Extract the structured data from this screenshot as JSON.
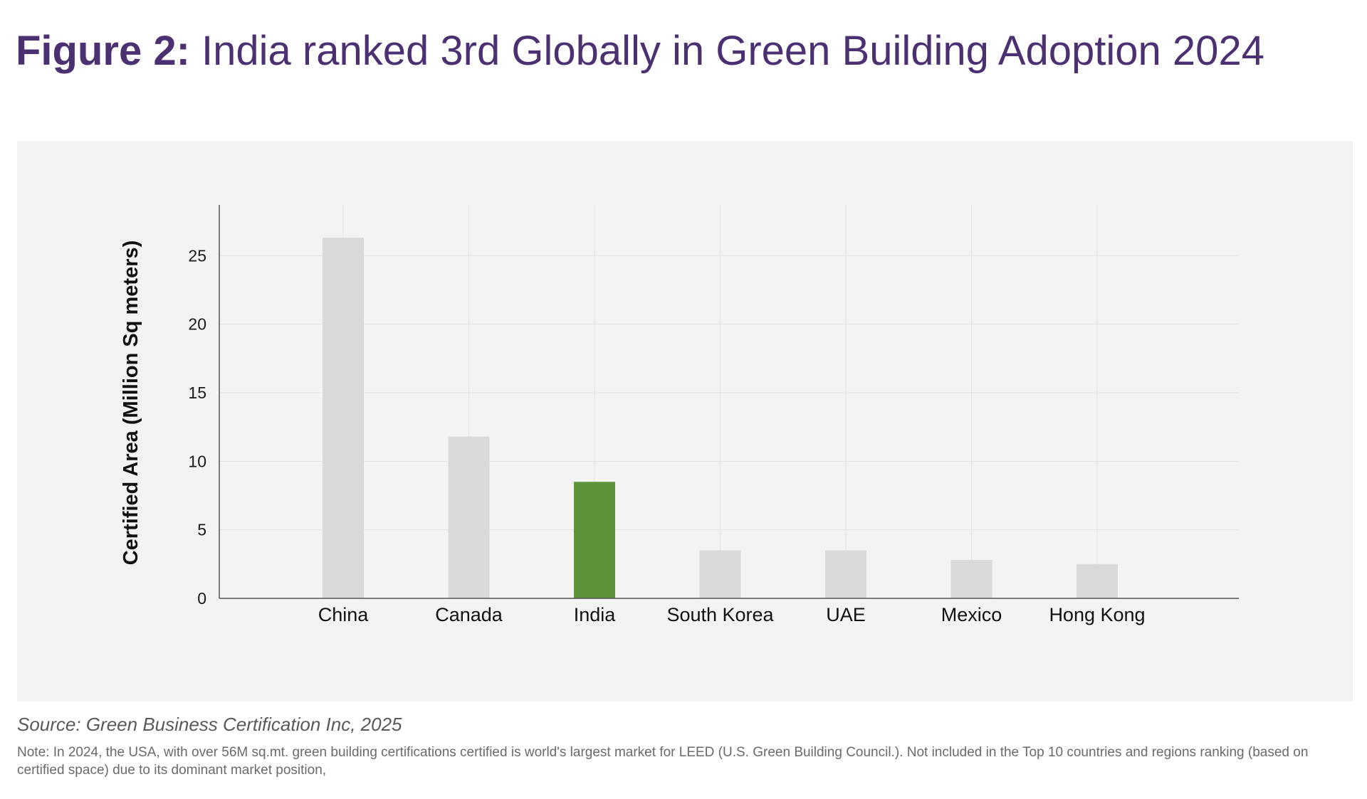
{
  "header": {
    "title_prefix": "Figure 2:",
    "title_text": "India ranked 3rd Globally in Green Building Adoption 2024"
  },
  "footer": {
    "source": "Source: Green Business Certification Inc, 2025",
    "note": "Note: In 2024, the USA, with over 56M sq.mt. green building certifications certified is world's largest market for LEED (U.S. Green Building Council.). Not included in the Top 10 countries and regions ranking (based on certified space) due to its dominant market position,"
  },
  "colors": {
    "title": "#4b3072",
    "panel_background": "#f3f3f3",
    "bar_default": "#d9d9d9",
    "bar_highlight": "#5e9439",
    "grid": "#e2e2e2",
    "axis": "#555555"
  },
  "chart_data": {
    "type": "bar",
    "title": "",
    "xlabel": "",
    "ylabel": "Certified Area (Million Sq meters)",
    "categories": [
      "China",
      "Canada",
      "India",
      "South Korea",
      "UAE",
      "Mexico",
      "Hong Kong"
    ],
    "values": [
      26.3,
      11.8,
      8.5,
      3.5,
      3.5,
      2.8,
      2.5
    ],
    "highlight": "India",
    "ylim": [
      0,
      28.7
    ],
    "yticks": [
      0,
      5,
      10,
      15,
      20,
      25
    ],
    "grid": true,
    "legend": "none"
  }
}
